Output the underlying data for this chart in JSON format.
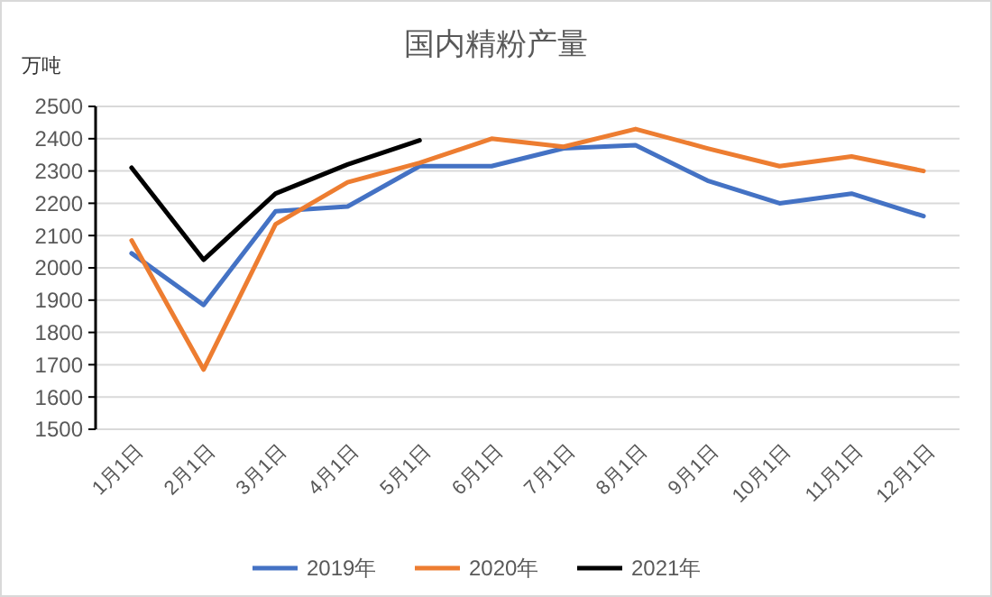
{
  "chart_data": {
    "type": "line",
    "title": "国内精粉产量",
    "ylabel": "万吨",
    "categories": [
      "1月1日",
      "2月1日",
      "3月1日",
      "4月1日",
      "5月1日",
      "6月1日",
      "7月1日",
      "8月1日",
      "9月1日",
      "10月1日",
      "11月1日",
      "12月1日"
    ],
    "series": [
      {
        "name": "2019年",
        "color": "#4472c4",
        "values": [
          2045,
          1885,
          2175,
          2190,
          2315,
          2315,
          2370,
          2380,
          2270,
          2200,
          2230,
          2160
        ]
      },
      {
        "name": "2020年",
        "color": "#ed7d31",
        "values": [
          2085,
          1685,
          2135,
          2265,
          2325,
          2400,
          2375,
          2430,
          2370,
          2315,
          2345,
          2300
        ]
      },
      {
        "name": "2021年",
        "color": "#000000",
        "values": [
          2310,
          2025,
          2230,
          2320,
          2395,
          null,
          null,
          null,
          null,
          null,
          null,
          null
        ]
      }
    ],
    "ylim": [
      1500,
      2500
    ],
    "yticks": [
      1500,
      1600,
      1700,
      1800,
      1900,
      2000,
      2100,
      2200,
      2300,
      2400,
      2500
    ],
    "grid": "y",
    "legend": "bottom",
    "marker": "none",
    "line_style": "solid"
  }
}
